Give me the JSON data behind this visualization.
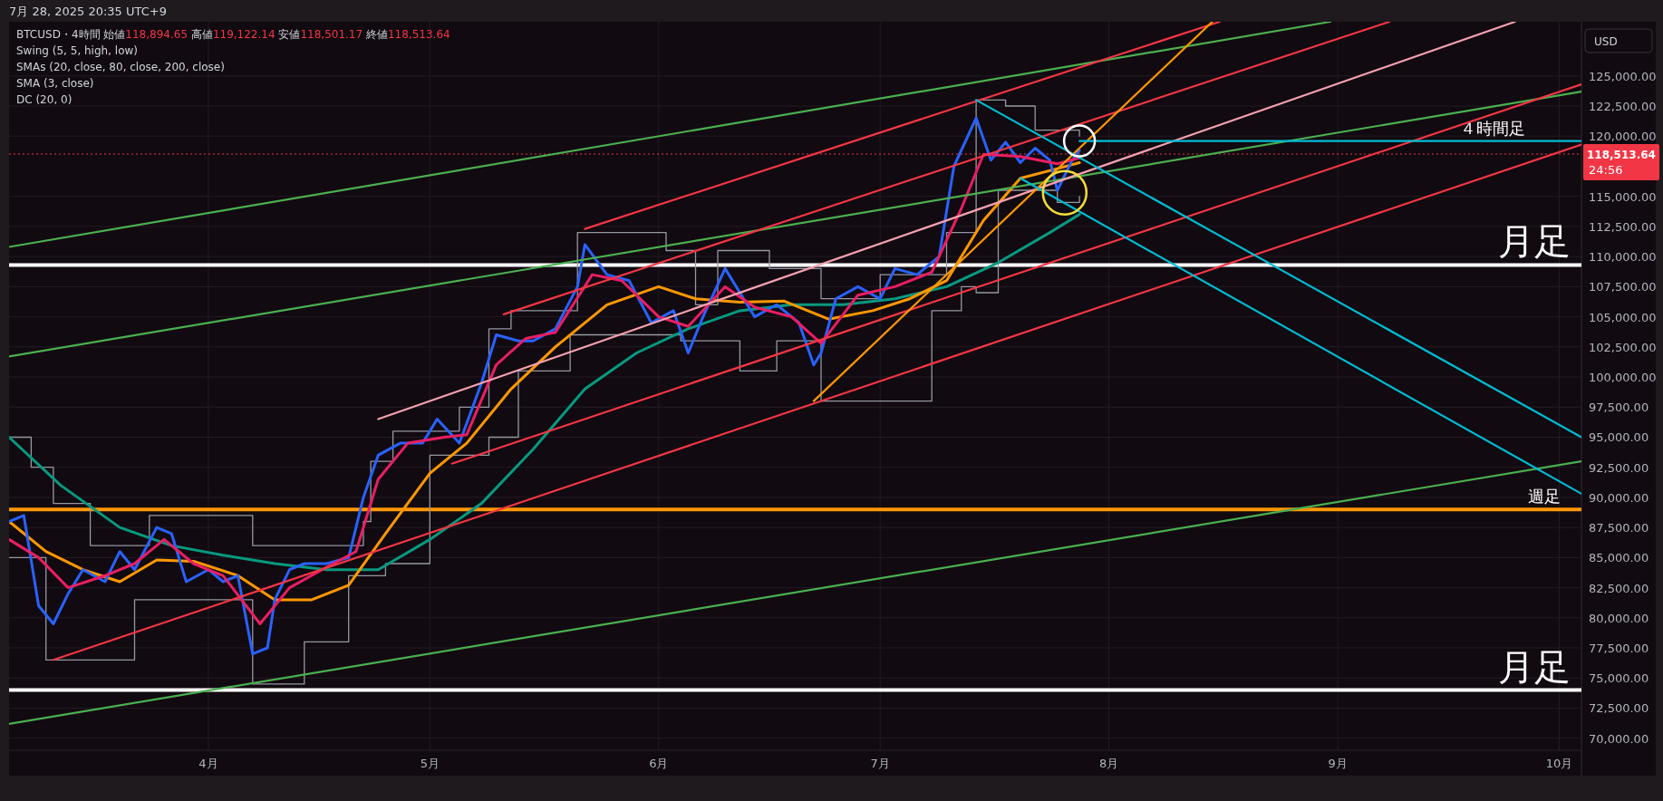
{
  "chart_data": {
    "type": "line",
    "title": "BTCUSD・4時間",
    "subtitle": "始値118,894.65 高値119,122.14 安値118,501.17 終値118,513.64",
    "annotations": [
      "7月 28, 2025 20:35 UTC+9",
      "Swing (5, 5, high, low)",
      "SMAs (20, close, 80, close, 200, close)",
      "SMA (3, close)",
      "DC (20, 0)",
      "24:56",
      "USD",
      {
        "text": "４時間足",
        "x": "2025-09-22",
        "y": 119600
      },
      {
        "text": "週足",
        "x": "2025-09-29",
        "y": 89000
      }
    ],
    "xlim": [
      "2025-03-05",
      "2025-10-04"
    ],
    "ylim": [
      69000,
      129500
    ],
    "xticks": [
      {
        "value": "2025-04-01",
        "label": "4月"
      },
      {
        "value": "2025-05-01",
        "label": "5月"
      },
      {
        "value": "2025-06-01",
        "label": "6月"
      },
      {
        "value": "2025-07-01",
        "label": "7月"
      },
      {
        "value": "2025-08-01",
        "label": "8月"
      },
      {
        "value": "2025-09-01",
        "label": "9月"
      },
      {
        "value": "2025-10-01",
        "label": "10月"
      }
    ],
    "yticks": [
      {
        "value": 70000,
        "label": "70,000.00"
      },
      {
        "value": 72500,
        "label": "72,500.00"
      },
      {
        "value": 75000,
        "label": "75,000.00"
      },
      {
        "value": 77500,
        "label": "77,500.00"
      },
      {
        "value": 80000,
        "label": "80,000.00"
      },
      {
        "value": 82500,
        "label": "82,500.00"
      },
      {
        "value": 85000,
        "label": "85,000.00"
      },
      {
        "value": 87500,
        "label": "87,500.00"
      },
      {
        "value": 90000,
        "label": "90,000.00"
      },
      {
        "value": 92500,
        "label": "92,500.00"
      },
      {
        "value": 95000,
        "label": "95,000.00"
      },
      {
        "value": 97500,
        "label": "97,500.00"
      },
      {
        "value": 100000,
        "label": "100,000.00"
      },
      {
        "value": 102500,
        "label": "102,500.00"
      },
      {
        "value": 105000,
        "label": "105,000.00"
      },
      {
        "value": 107500,
        "label": "107,500.00"
      },
      {
        "value": 110000,
        "label": "110,000.00"
      },
      {
        "value": 112500,
        "label": "112,500.00"
      },
      {
        "value": 115000,
        "label": "115,000.00"
      },
      {
        "value": 120000,
        "label": "120,000.00"
      },
      {
        "value": 122500,
        "label": "122,500.00"
      },
      {
        "value": 125000,
        "label": "125,000.00"
      }
    ],
    "grid": true,
    "ref_lines": [
      {
        "axis": "y",
        "value": 109300,
        "label": "月足",
        "color": "#ffffff"
      },
      {
        "axis": "y",
        "value": 74000,
        "label": "月足",
        "color": "#ffffff"
      },
      {
        "axis": "y",
        "value": 89000,
        "color": "#ff9800"
      },
      {
        "axis": "y",
        "value": 118513.64,
        "label": "118,513.64",
        "color": "#f23645",
        "line_style": "dotted"
      }
    ],
    "series": [
      {
        "color": "#9598a1",
        "type": "step",
        "x": [
          "2025-03-05",
          "2025-03-08",
          "2025-03-11",
          "2025-03-16",
          "2025-03-24",
          "2025-04-02",
          "2025-04-07",
          "2025-04-12",
          "2025-04-22",
          "2025-04-23",
          "2025-04-26",
          "2025-05-05",
          "2025-05-09",
          "2025-05-12",
          "2025-05-21",
          "2025-06-02",
          "2025-06-06",
          "2025-06-09",
          "2025-06-16",
          "2025-06-23",
          "2025-07-01",
          "2025-07-10",
          "2025-07-14",
          "2025-07-18",
          "2025-07-22",
          "2025-07-28"
        ],
        "values": [
          95000,
          92500,
          89500,
          86000,
          88500,
          88500,
          86000,
          86000,
          88000,
          93000,
          95500,
          97500,
          104000,
          105500,
          112000,
          110500,
          106000,
          110500,
          109000,
          106500,
          108500,
          112000,
          123000,
          122500,
          120500,
          120000
        ]
      },
      {
        "color": "#9598a1",
        "type": "step",
        "x": [
          "2025-03-05",
          "2025-03-10",
          "2025-03-22",
          "2025-04-01",
          "2025-04-07",
          "2025-04-14",
          "2025-04-20",
          "2025-04-25",
          "2025-05-01",
          "2025-05-09",
          "2025-05-13",
          "2025-05-20",
          "2025-06-04",
          "2025-06-12",
          "2025-06-17",
          "2025-06-23",
          "2025-07-01",
          "2025-07-08",
          "2025-07-12",
          "2025-07-14",
          "2025-07-17",
          "2025-07-25",
          "2025-07-28"
        ],
        "values": [
          85000,
          76500,
          81500,
          81500,
          74500,
          78000,
          83500,
          84500,
          93500,
          95000,
          100500,
          103500,
          103000,
          100500,
          103000,
          98000,
          98000,
          105500,
          107500,
          107000,
          115500,
          114500,
          115000
        ]
      },
      {
        "color": "#089981",
        "x": [
          "2025-03-05",
          "2025-03-12",
          "2025-03-20",
          "2025-03-27",
          "2025-04-03",
          "2025-04-10",
          "2025-04-17",
          "2025-04-24",
          "2025-05-01",
          "2025-05-08",
          "2025-05-15",
          "2025-05-22",
          "2025-05-29",
          "2025-06-05",
          "2025-06-12",
          "2025-06-19",
          "2025-06-26",
          "2025-07-03",
          "2025-07-10",
          "2025-07-17",
          "2025-07-24",
          "2025-07-28"
        ],
        "values": [
          95000,
          91000,
          87500,
          86000,
          85200,
          84500,
          84000,
          84000,
          86500,
          89500,
          94000,
          99000,
          102000,
          104000,
          105500,
          106000,
          106000,
          106500,
          107500,
          109500,
          112000,
          113500
        ]
      },
      {
        "color": "#ff9800",
        "x": [
          "2025-03-05",
          "2025-03-10",
          "2025-03-15",
          "2025-03-20",
          "2025-03-25",
          "2025-03-30",
          "2025-04-05",
          "2025-04-10",
          "2025-04-15",
          "2025-04-20",
          "2025-04-25",
          "2025-05-01",
          "2025-05-06",
          "2025-05-12",
          "2025-05-18",
          "2025-05-25",
          "2025-06-01",
          "2025-06-06",
          "2025-06-12",
          "2025-06-18",
          "2025-06-24",
          "2025-06-30",
          "2025-07-05",
          "2025-07-10",
          "2025-07-15",
          "2025-07-20",
          "2025-07-25",
          "2025-07-28"
        ],
        "values": [
          88000,
          85500,
          84000,
          83000,
          84800,
          84700,
          83500,
          81500,
          81500,
          82700,
          87000,
          92000,
          94500,
          99000,
          102500,
          106000,
          107500,
          106500,
          106200,
          106300,
          104800,
          105500,
          106500,
          108000,
          113000,
          116500,
          117300,
          117800
        ]
      },
      {
        "color": "#2962ff",
        "x": [
          "2025-03-05",
          "2025-03-07",
          "2025-03-09",
          "2025-03-11",
          "2025-03-13",
          "2025-03-15",
          "2025-03-18",
          "2025-03-20",
          "2025-03-22",
          "2025-03-25",
          "2025-03-27",
          "2025-03-29",
          "2025-04-01",
          "2025-04-03",
          "2025-04-05",
          "2025-04-07",
          "2025-04-09",
          "2025-04-10",
          "2025-04-12",
          "2025-04-14",
          "2025-04-17",
          "2025-04-20",
          "2025-04-22",
          "2025-04-24",
          "2025-04-27",
          "2025-04-30",
          "2025-05-02",
          "2025-05-05",
          "2025-05-08",
          "2025-05-10",
          "2025-05-13",
          "2025-05-15",
          "2025-05-18",
          "2025-05-21",
          "2025-05-22",
          "2025-05-25",
          "2025-05-28",
          "2025-05-31",
          "2025-06-03",
          "2025-06-05",
          "2025-06-07",
          "2025-06-10",
          "2025-06-12",
          "2025-06-14",
          "2025-06-17",
          "2025-06-20",
          "2025-06-22",
          "2025-06-23",
          "2025-06-25",
          "2025-06-28",
          "2025-07-01",
          "2025-07-03",
          "2025-07-06",
          "2025-07-09",
          "2025-07-11",
          "2025-07-14",
          "2025-07-16",
          "2025-07-18",
          "2025-07-20",
          "2025-07-22",
          "2025-07-24",
          "2025-07-25",
          "2025-07-27",
          "2025-07-28"
        ],
        "values": [
          88000,
          88500,
          81000,
          79500,
          82000,
          84000,
          83000,
          85500,
          84000,
          87500,
          87000,
          83000,
          84000,
          83000,
          83500,
          77000,
          77500,
          81500,
          84000,
          84500,
          84500,
          85000,
          90000,
          93500,
          94500,
          94500,
          96500,
          94500,
          99500,
          103500,
          103000,
          103000,
          104000,
          107500,
          111000,
          108500,
          108000,
          104500,
          105500,
          102000,
          105000,
          109000,
          107000,
          105000,
          106000,
          104500,
          101000,
          102000,
          106500,
          107500,
          106500,
          109000,
          108500,
          110000,
          117500,
          121500,
          118000,
          119500,
          117800,
          119000,
          118000,
          115500,
          118000,
          118800
        ]
      },
      {
        "color": "#e91e63",
        "x": [
          "2025-03-05",
          "2025-03-09",
          "2025-03-13",
          "2025-03-18",
          "2025-03-22",
          "2025-03-26",
          "2025-03-30",
          "2025-04-03",
          "2025-04-08",
          "2025-04-12",
          "2025-04-17",
          "2025-04-21",
          "2025-04-24",
          "2025-04-28",
          "2025-05-03",
          "2025-05-06",
          "2025-05-10",
          "2025-05-14",
          "2025-05-18",
          "2025-05-23",
          "2025-05-27",
          "2025-06-01",
          "2025-06-05",
          "2025-06-10",
          "2025-06-14",
          "2025-06-19",
          "2025-06-23",
          "2025-06-28",
          "2025-07-03",
          "2025-07-08",
          "2025-07-12",
          "2025-07-15",
          "2025-07-20",
          "2025-07-25",
          "2025-07-28"
        ],
        "values": [
          86500,
          85000,
          82500,
          83500,
          84500,
          86500,
          84500,
          83500,
          79500,
          82500,
          84200,
          85500,
          91500,
          94500,
          95000,
          95200,
          101000,
          103200,
          103700,
          108500,
          108000,
          105000,
          104200,
          107500,
          105800,
          105000,
          102800,
          106800,
          107500,
          108700,
          114000,
          118500,
          118300,
          117700,
          118200
        ]
      },
      {
        "color": "#4caf50",
        "x": [
          "2025-03-05",
          "2025-08-31"
        ],
        "values": [
          110800,
          129500
        ]
      },
      {
        "color": "#4caf50",
        "x": [
          "2025-03-05",
          "2025-10-04"
        ],
        "values": [
          101700,
          123700
        ]
      },
      {
        "color": "#4caf50",
        "x": [
          "2025-03-05",
          "2025-10-04"
        ],
        "values": [
          71200,
          93000
        ]
      },
      {
        "color": "#f23645",
        "x": [
          "2025-03-11",
          "2025-10-04"
        ],
        "values": [
          76500,
          119300
        ]
      },
      {
        "color": "#f23645",
        "x": [
          "2025-05-04",
          "2025-10-04"
        ],
        "values": [
          92800,
          124300
        ]
      },
      {
        "color": "#f23645",
        "x": [
          "2025-05-11",
          "2025-09-08"
        ],
        "values": [
          105200,
          129500
        ]
      },
      {
        "color": "#f23645",
        "x": [
          "2025-05-22",
          "2025-08-16"
        ],
        "values": [
          112300,
          129500
        ]
      },
      {
        "color": "#f7a1b0",
        "x": [
          "2025-04-24",
          "2025-09-25"
        ],
        "values": [
          96500,
          129500
        ]
      },
      {
        "color": "#ff9800",
        "x": [
          "2025-06-22",
          "2025-08-15"
        ],
        "values": [
          98000,
          129500
        ]
      },
      {
        "color": "#00bcd4",
        "x": [
          "2025-07-14",
          "2025-10-04"
        ],
        "values": [
          123000,
          95000
        ]
      },
      {
        "color": "#00bcd4",
        "x": [
          "2025-07-20",
          "2025-10-04"
        ],
        "values": [
          116500,
          90300
        ]
      },
      {
        "color": "#00bcd4",
        "x": [
          "2025-07-28",
          "2025-10-04"
        ],
        "values": [
          119600,
          119600
        ]
      }
    ]
  }
}
